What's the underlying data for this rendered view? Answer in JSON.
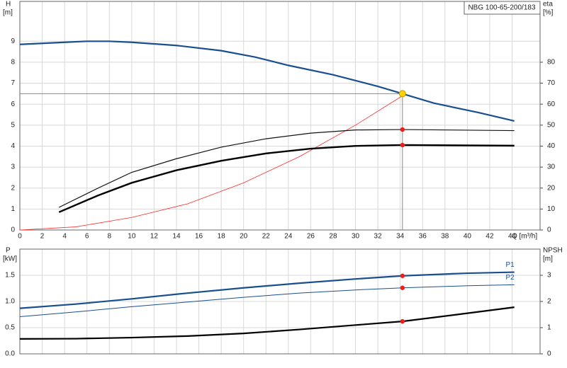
{
  "chart_data": [
    {
      "type": "line",
      "title": "NBG 100-65-200/183",
      "y_label": "H",
      "y_unit": "[m]",
      "y2_label": "eta",
      "y2_unit": "[%]",
      "x_label": "Q [m³/h]",
      "xlim": [
        0,
        46.5
      ],
      "xticks": [
        0,
        2,
        4,
        6,
        8,
        10,
        12,
        14,
        16,
        18,
        20,
        22,
        24,
        26,
        28,
        30,
        32,
        34,
        36,
        38,
        40,
        42,
        44
      ],
      "ylim": [
        0,
        10.9
      ],
      "yticks": [
        0,
        1,
        2,
        3,
        4,
        5,
        6,
        7,
        8,
        9
      ],
      "y2lim": [
        0,
        109
      ],
      "y2ticks": [
        0,
        10,
        20,
        30,
        40,
        50,
        60,
        70,
        80
      ],
      "grid": true,
      "duty_x": 34.2,
      "series": [
        {
          "color": "#1a4f8f",
          "width": 2.2,
          "x": [
            0,
            4,
            6,
            8,
            10,
            14,
            18,
            21,
            24,
            28,
            32,
            34.2,
            37,
            41,
            44.2
          ],
          "values": [
            8.85,
            8.95,
            9.0,
            9.0,
            8.95,
            8.8,
            8.55,
            8.25,
            7.85,
            7.4,
            6.85,
            6.5,
            6.05,
            5.6,
            5.2
          ],
          "duty_value": 6.5,
          "duty_color": "#ffd500",
          "crosshair": true
        },
        {
          "color": "#ff2a2a",
          "width": 0.8,
          "x": [
            0,
            5,
            10,
            15,
            20,
            25,
            30,
            34.2
          ],
          "values": [
            0,
            0.15,
            0.6,
            1.25,
            2.25,
            3.5,
            5.0,
            6.4
          ]
        },
        {
          "color": "#111111",
          "width": 1.2,
          "axis": "y2",
          "x": [
            3.5,
            7,
            10,
            14,
            18,
            22,
            26,
            30,
            34.2,
            44.2
          ],
          "values": [
            10.8,
            20,
            27.5,
            34,
            39.5,
            43.5,
            46.2,
            47.7,
            47.9,
            47.4
          ],
          "duty_value": 47.9,
          "duty_color": "#ee1c1c"
        },
        {
          "color": "#000000",
          "width": 2.4,
          "axis": "y2",
          "x": [
            3.5,
            7,
            10,
            14,
            18,
            22,
            26,
            30,
            34.2,
            44.2
          ],
          "values": [
            8.5,
            16.5,
            22.5,
            28.5,
            33,
            36.5,
            38.8,
            40.1,
            40.5,
            40.2
          ],
          "duty_value": 40.5,
          "duty_color": "#ee1c1c"
        }
      ]
    },
    {
      "type": "line",
      "y_label": "P",
      "y_unit": "[kW]",
      "y2_label": "NPSH",
      "y2_unit": "[m]",
      "xlim": [
        0,
        46.5
      ],
      "xticks": [
        0,
        2,
        4,
        6,
        8,
        10,
        12,
        14,
        16,
        18,
        20,
        22,
        24,
        26,
        28,
        30,
        32,
        34,
        36,
        38,
        40,
        42,
        44
      ],
      "show_xtick_labels": false,
      "ylim": [
        0,
        2
      ],
      "yticks": [
        {
          "value": 0,
          "label": "0.0"
        },
        0.5,
        {
          "value": 1,
          "label": "1.0"
        },
        1.5
      ],
      "y2lim": [
        0,
        4
      ],
      "y2ticks": [
        0,
        1,
        2,
        3
      ],
      "grid": true,
      "duty_x": 34.2,
      "series": [
        {
          "name": "P1",
          "color": "#1a4f8f",
          "width": 2.2,
          "x": [
            0,
            5,
            10,
            15,
            20,
            25,
            30,
            34.2,
            40,
            44.2
          ],
          "values": [
            0.87,
            0.95,
            1.05,
            1.16,
            1.26,
            1.35,
            1.43,
            1.49,
            1.54,
            1.56
          ],
          "duty_value": 1.49,
          "duty_color": "#ee1c1c"
        },
        {
          "name": "P2",
          "color": "#1a4f8f",
          "width": 1,
          "x": [
            0,
            5,
            10,
            15,
            20,
            25,
            30,
            34.2,
            40,
            44.2
          ],
          "values": [
            0.71,
            0.8,
            0.9,
            0.99,
            1.08,
            1.16,
            1.22,
            1.26,
            1.3,
            1.32
          ],
          "duty_value": 1.26,
          "duty_color": "#ee1c1c"
        },
        {
          "color": "#000000",
          "width": 2.2,
          "axis": "y2",
          "x": [
            0,
            5,
            10,
            15,
            20,
            25,
            30,
            34.2,
            40,
            44.2
          ],
          "values": [
            0.57,
            0.58,
            0.62,
            0.68,
            0.78,
            0.93,
            1.1,
            1.24,
            1.55,
            1.78
          ],
          "duty_value": 1.24,
          "duty_color": "#ee1c1c"
        }
      ]
    }
  ]
}
